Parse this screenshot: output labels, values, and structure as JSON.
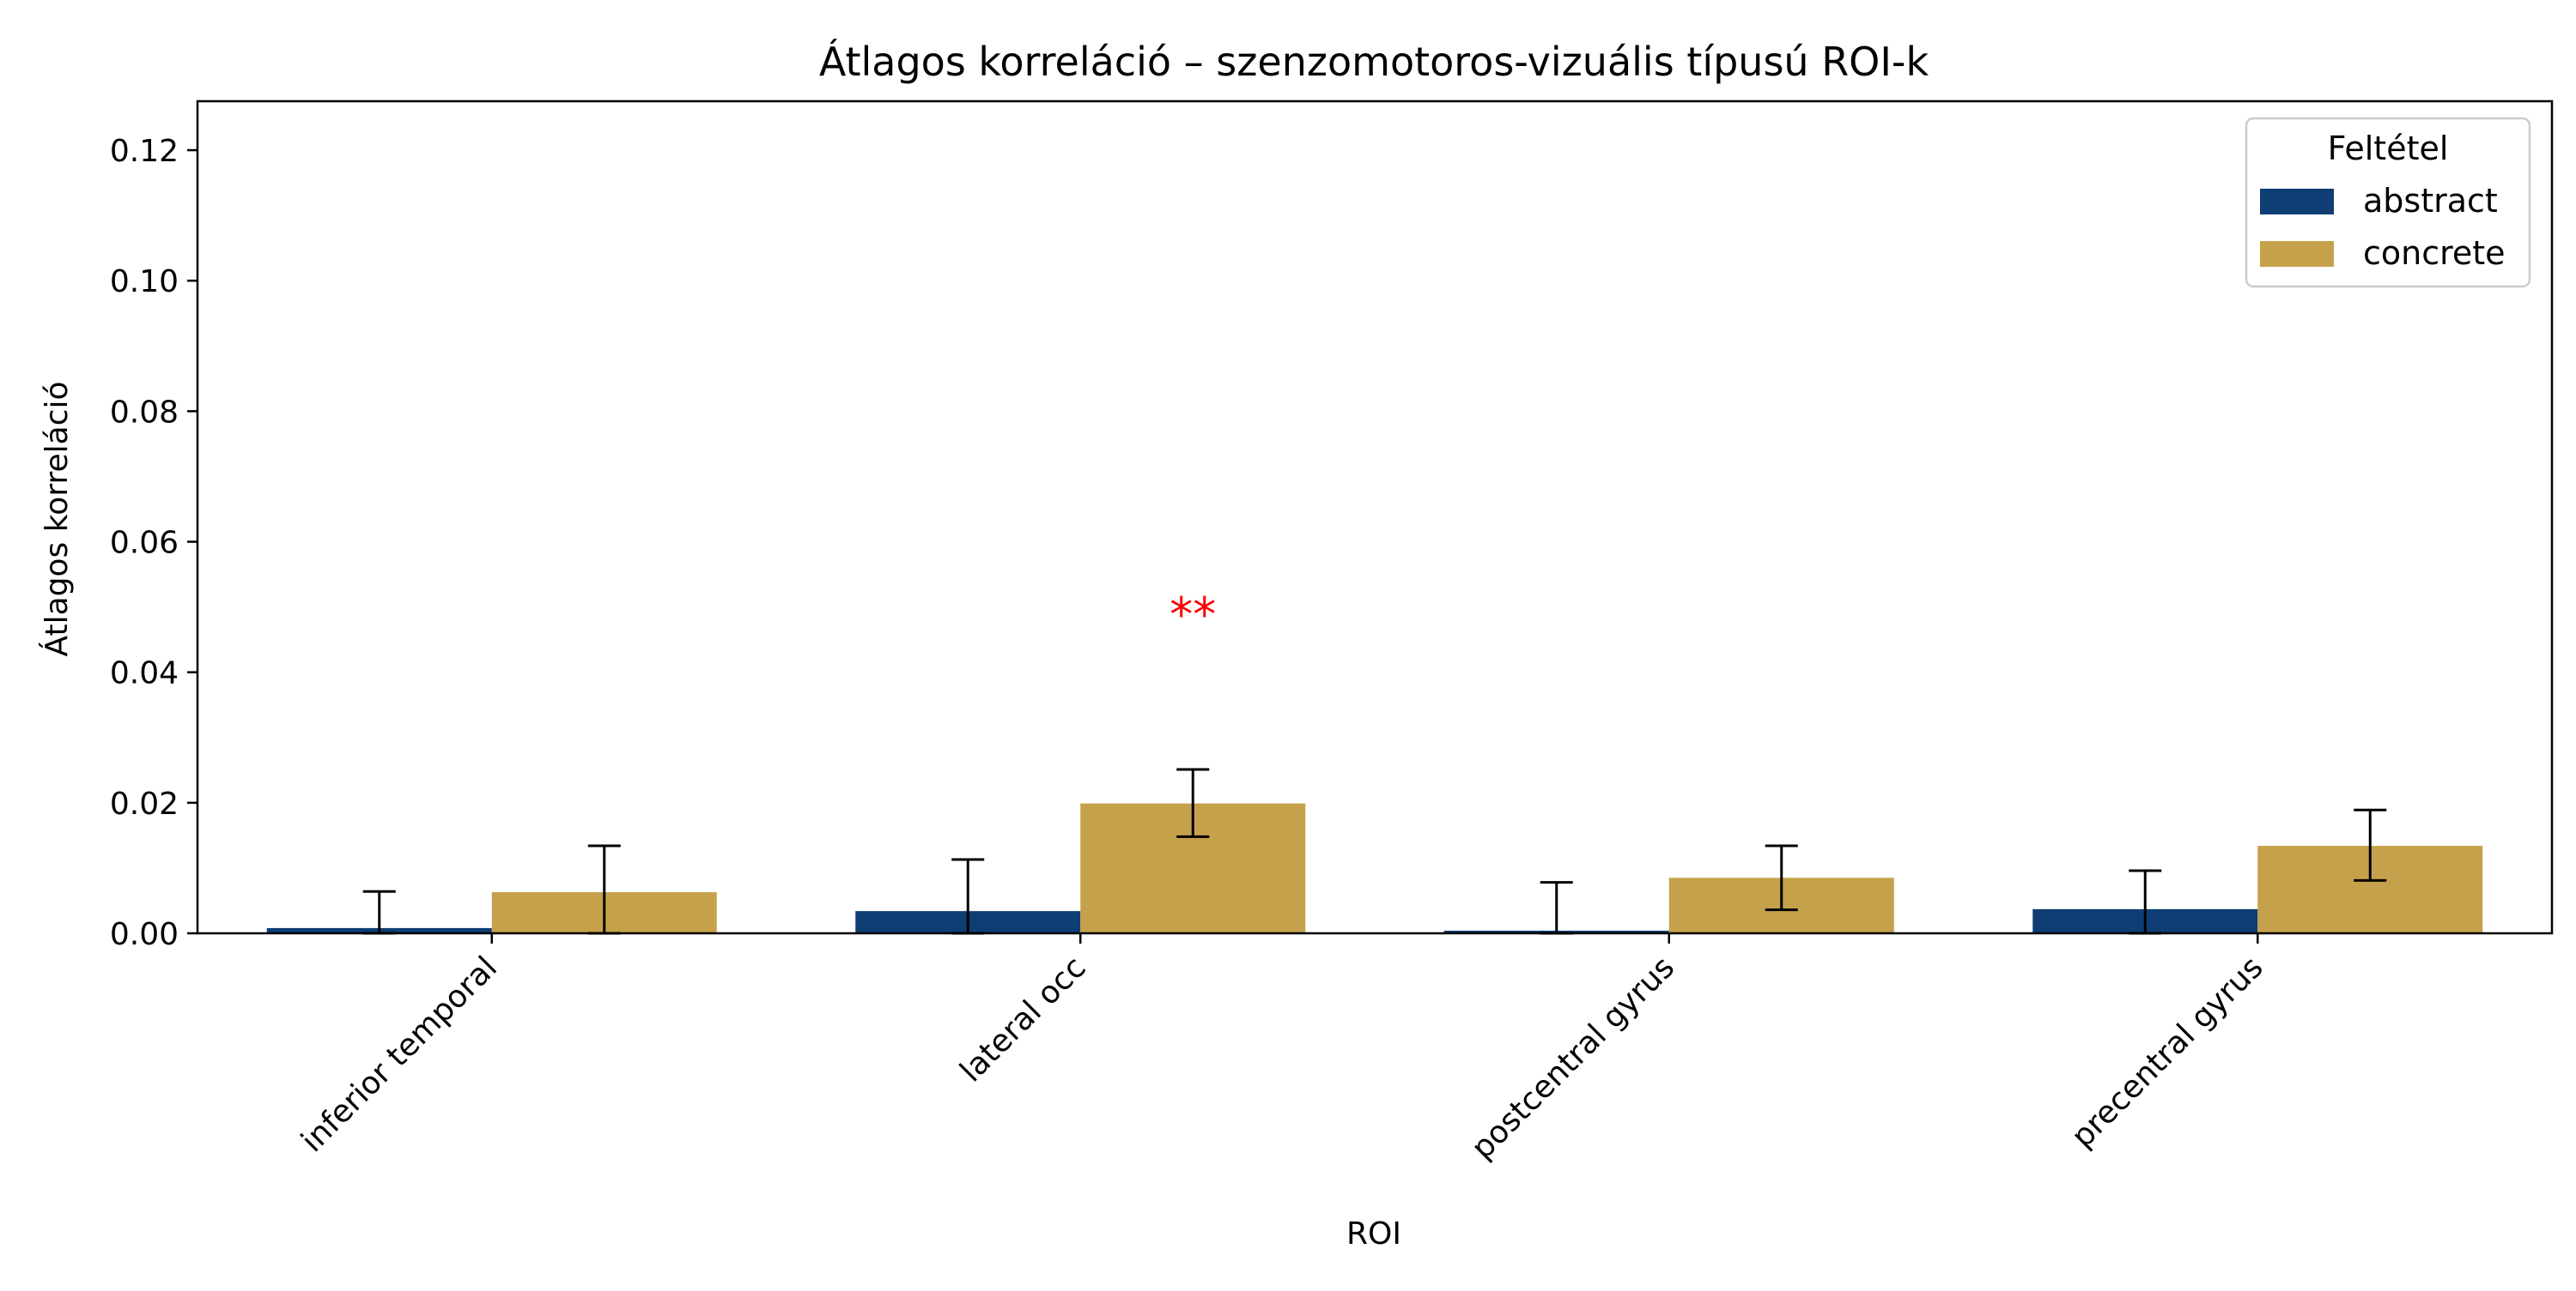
{
  "chart_data": {
    "type": "bar",
    "title": "Átlagos korreláció – szenzomotoros-vizuális típusú ROI-k",
    "xlabel": "ROI",
    "ylabel": "Átlagos korreláció",
    "categories": [
      "inferior temporal",
      "lateral occ",
      "postcentral gyrus",
      "precentral gyrus"
    ],
    "series": [
      {
        "name": "abstract",
        "color": "#0e3e74",
        "values": [
          0.0008,
          0.0034,
          0.0004,
          0.0037
        ],
        "error_upper": [
          0.0064,
          0.0113,
          0.0078,
          0.0096
        ],
        "error_lower": [
          0.0,
          0.0,
          0.0,
          0.0
        ]
      },
      {
        "name": "concrete",
        "color": "#c6a14b",
        "values": [
          0.0063,
          0.0199,
          0.0085,
          0.0134
        ],
        "error_upper": [
          0.0134,
          0.0251,
          0.0134,
          0.0189
        ],
        "error_lower": [
          0.0,
          0.0148,
          0.0036,
          0.0081
        ]
      }
    ],
    "ylim": [
      0,
      0.1275
    ],
    "yticks": [
      "0.00",
      "0.02",
      "0.04",
      "0.06",
      "0.08",
      "0.10",
      "0.12"
    ],
    "ytick_values": [
      0.0,
      0.02,
      0.04,
      0.06,
      0.08,
      0.1,
      0.12
    ],
    "grid": false,
    "legend": {
      "title": "Feltétel",
      "placement": "top-right",
      "entries": [
        "abstract",
        "concrete"
      ]
    },
    "annotations": [
      {
        "text": "**",
        "category": "lateral occ",
        "series": "concrete",
        "y": 0.049,
        "color": "#ff0000"
      }
    ]
  }
}
